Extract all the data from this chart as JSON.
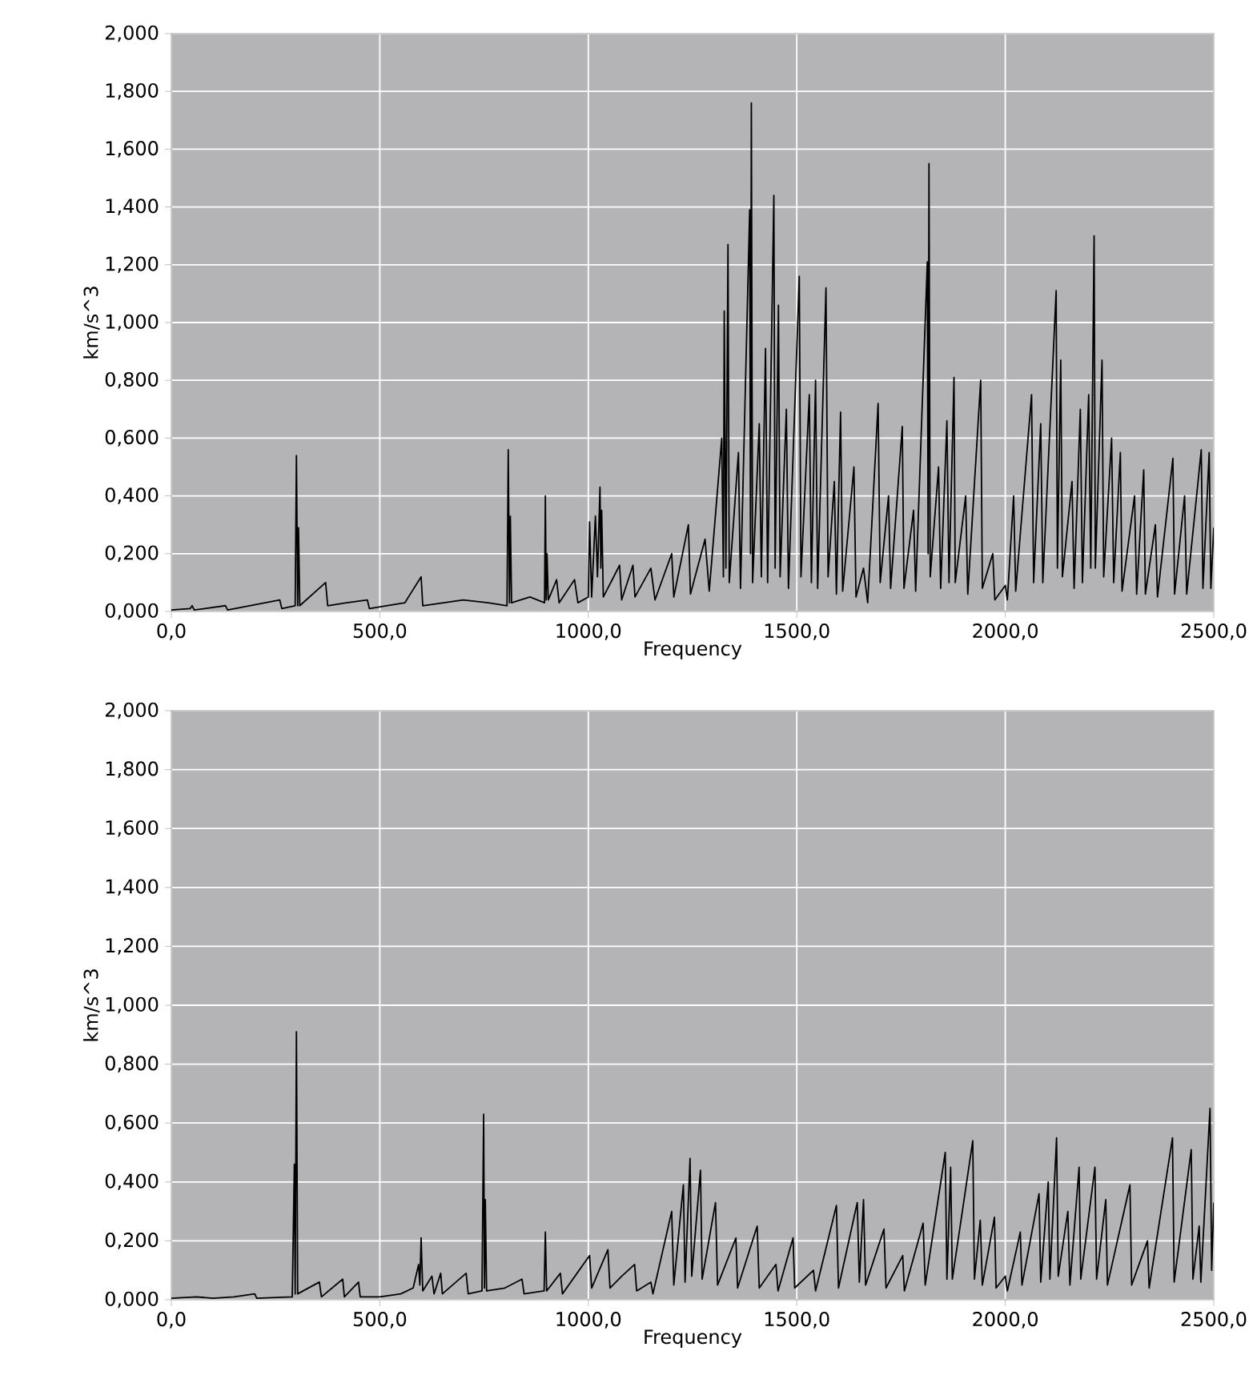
{
  "chart_data": [
    {
      "type": "line",
      "xlabel": "Frequency",
      "ylabel": "km/s^3",
      "grid": true,
      "marker": "none",
      "line_style": "solid",
      "xlim": [
        0,
        2500
      ],
      "ylim": [
        0,
        2
      ],
      "xticks": [
        {
          "value": 0,
          "label": "0,0"
        },
        {
          "value": 500,
          "label": "500,0"
        },
        {
          "value": 1000,
          "label": "1000,0"
        },
        {
          "value": 1500,
          "label": "1500,0"
        },
        {
          "value": 2000,
          "label": "2000,0"
        },
        {
          "value": 2500,
          "label": "2500,0"
        }
      ],
      "yticks": [
        {
          "value": 0,
          "label": "0,000"
        },
        {
          "value": 0.2,
          "label": "0,200"
        },
        {
          "value": 0.4,
          "label": "0,400"
        },
        {
          "value": 0.6,
          "label": "0,600"
        },
        {
          "value": 0.8,
          "label": "0,800"
        },
        {
          "value": 1.0,
          "label": "1,000"
        },
        {
          "value": 1.2,
          "label": "1,200"
        },
        {
          "value": 1.4,
          "label": "1,400"
        },
        {
          "value": 1.6,
          "label": "1,600"
        },
        {
          "value": 1.8,
          "label": "1,800"
        },
        {
          "value": 2.0,
          "label": "2,000"
        }
      ],
      "x": [
        0,
        45,
        50,
        55,
        130,
        135,
        260,
        265,
        297,
        300,
        303,
        305,
        308,
        370,
        375,
        420,
        470,
        475,
        560,
        599,
        603,
        700,
        760,
        805,
        808,
        811,
        813,
        816,
        860,
        895,
        897,
        899,
        901,
        904,
        924,
        930,
        967,
        975,
        1000,
        1003,
        1008,
        1017,
        1022,
        1028,
        1030,
        1032,
        1036,
        1075,
        1080,
        1107,
        1112,
        1150,
        1160,
        1200,
        1205,
        1240,
        1245,
        1280,
        1290,
        1320,
        1324,
        1326,
        1330,
        1335,
        1338,
        1360,
        1365,
        1387,
        1389,
        1391,
        1394,
        1410,
        1415,
        1425,
        1430,
        1445,
        1448,
        1456,
        1460,
        1475,
        1480,
        1506,
        1510,
        1530,
        1535,
        1545,
        1550,
        1570,
        1575,
        1590,
        1595,
        1605,
        1610,
        1637,
        1642,
        1660,
        1670,
        1695,
        1700,
        1720,
        1725,
        1753,
        1757,
        1780,
        1785,
        1813,
        1815,
        1817,
        1820,
        1840,
        1845,
        1860,
        1865,
        1877,
        1880,
        1905,
        1910,
        1941,
        1945,
        1970,
        1975,
        2000,
        2005,
        2020,
        2025,
        2063,
        2068,
        2085,
        2090,
        2122,
        2125,
        2133,
        2137,
        2160,
        2165,
        2180,
        2185,
        2200,
        2205,
        2213,
        2216,
        2232,
        2236,
        2255,
        2260,
        2276,
        2280,
        2310,
        2315,
        2332,
        2336,
        2360,
        2365,
        2402,
        2406,
        2430,
        2435,
        2470,
        2474,
        2489,
        2493,
        2500
      ],
      "series": [
        {
          "color": "#000000",
          "values": [
            0.005,
            0.01,
            0.02,
            0.005,
            0.02,
            0.005,
            0.04,
            0.01,
            0.02,
            0.54,
            0.02,
            0.29,
            0.02,
            0.1,
            0.02,
            0.03,
            0.04,
            0.01,
            0.03,
            0.12,
            0.02,
            0.04,
            0.03,
            0.02,
            0.56,
            0.03,
            0.33,
            0.03,
            0.05,
            0.03,
            0.4,
            0.04,
            0.2,
            0.04,
            0.11,
            0.03,
            0.11,
            0.03,
            0.05,
            0.31,
            0.05,
            0.33,
            0.12,
            0.43,
            0.15,
            0.35,
            0.05,
            0.16,
            0.04,
            0.16,
            0.05,
            0.15,
            0.04,
            0.2,
            0.05,
            0.3,
            0.06,
            0.25,
            0.07,
            0.6,
            0.12,
            1.04,
            0.15,
            1.27,
            0.1,
            0.55,
            0.08,
            1.39,
            0.2,
            1.76,
            0.1,
            0.65,
            0.12,
            0.91,
            0.1,
            1.44,
            0.15,
            1.06,
            0.12,
            0.7,
            0.08,
            1.16,
            0.12,
            0.75,
            0.1,
            0.8,
            0.08,
            1.12,
            0.12,
            0.45,
            0.06,
            0.69,
            0.07,
            0.5,
            0.05,
            0.15,
            0.03,
            0.72,
            0.1,
            0.4,
            0.08,
            0.64,
            0.08,
            0.35,
            0.07,
            1.21,
            0.2,
            1.55,
            0.12,
            0.5,
            0.08,
            0.66,
            0.1,
            0.81,
            0.1,
            0.4,
            0.06,
            0.8,
            0.08,
            0.2,
            0.04,
            0.09,
            0.04,
            0.4,
            0.07,
            0.75,
            0.1,
            0.65,
            0.1,
            1.11,
            0.15,
            0.87,
            0.12,
            0.45,
            0.08,
            0.7,
            0.1,
            0.75,
            0.15,
            1.3,
            0.15,
            0.87,
            0.12,
            0.6,
            0.1,
            0.55,
            0.07,
            0.4,
            0.06,
            0.49,
            0.06,
            0.3,
            0.05,
            0.53,
            0.06,
            0.4,
            0.06,
            0.56,
            0.08,
            0.55,
            0.08,
            0.29
          ]
        }
      ]
    },
    {
      "type": "line",
      "xlabel": "Frequency",
      "ylabel": "km/s^3",
      "grid": true,
      "marker": "none",
      "line_style": "solid",
      "xlim": [
        0,
        2500
      ],
      "ylim": [
        0,
        2
      ],
      "xticks": [
        {
          "value": 0,
          "label": "0,0"
        },
        {
          "value": 500,
          "label": "500,0"
        },
        {
          "value": 1000,
          "label": "1000,0"
        },
        {
          "value": 1500,
          "label": "1500,0"
        },
        {
          "value": 2000,
          "label": "2000,0"
        },
        {
          "value": 2500,
          "label": "2500,0"
        }
      ],
      "yticks": [
        {
          "value": 0,
          "label": "0,000"
        },
        {
          "value": 0.2,
          "label": "0,200"
        },
        {
          "value": 0.4,
          "label": "0,400"
        },
        {
          "value": 0.6,
          "label": "0,600"
        },
        {
          "value": 0.8,
          "label": "0,800"
        },
        {
          "value": 1.0,
          "label": "1,000"
        },
        {
          "value": 1.2,
          "label": "1,200"
        },
        {
          "value": 1.4,
          "label": "1,400"
        },
        {
          "value": 1.6,
          "label": "1,600"
        },
        {
          "value": 1.8,
          "label": "1,800"
        },
        {
          "value": 2.0,
          "label": "2,000"
        }
      ],
      "x": [
        0,
        60,
        100,
        150,
        200,
        205,
        290,
        295,
        297,
        300,
        303,
        355,
        360,
        411,
        415,
        449,
        453,
        500,
        550,
        580,
        593,
        596,
        599,
        603,
        625,
        630,
        646,
        650,
        707,
        712,
        745,
        749,
        751,
        753,
        756,
        800,
        841,
        846,
        894,
        897,
        900,
        933,
        938,
        1003,
        1008,
        1047,
        1052,
        1080,
        1111,
        1116,
        1150,
        1155,
        1200,
        1205,
        1228,
        1232,
        1244,
        1248,
        1269,
        1273,
        1305,
        1310,
        1354,
        1358,
        1405,
        1410,
        1450,
        1455,
        1491,
        1495,
        1540,
        1545,
        1595,
        1600,
        1645,
        1650,
        1660,
        1665,
        1709,
        1714,
        1754,
        1758,
        1803,
        1808,
        1856,
        1860,
        1869,
        1873,
        1922,
        1926,
        1940,
        1945,
        1974,
        1978,
        2000,
        2005,
        2036,
        2040,
        2081,
        2085,
        2103,
        2107,
        2123,
        2127,
        2150,
        2155,
        2177,
        2181,
        2215,
        2219,
        2241,
        2245,
        2299,
        2303,
        2341,
        2345,
        2401,
        2405,
        2446,
        2450,
        2465,
        2469,
        2491,
        2495,
        2500
      ],
      "series": [
        {
          "color": "#000000",
          "values": [
            0.005,
            0.01,
            0.005,
            0.01,
            0.02,
            0.005,
            0.01,
            0.46,
            0.02,
            0.91,
            0.02,
            0.06,
            0.01,
            0.07,
            0.01,
            0.06,
            0.01,
            0.01,
            0.02,
            0.04,
            0.12,
            0.05,
            0.21,
            0.03,
            0.08,
            0.02,
            0.09,
            0.02,
            0.09,
            0.02,
            0.03,
            0.63,
            0.04,
            0.34,
            0.03,
            0.04,
            0.07,
            0.02,
            0.03,
            0.23,
            0.03,
            0.09,
            0.02,
            0.15,
            0.04,
            0.17,
            0.04,
            0.08,
            0.12,
            0.03,
            0.06,
            0.02,
            0.3,
            0.05,
            0.39,
            0.06,
            0.48,
            0.08,
            0.44,
            0.07,
            0.33,
            0.05,
            0.21,
            0.04,
            0.25,
            0.04,
            0.12,
            0.03,
            0.21,
            0.04,
            0.1,
            0.03,
            0.32,
            0.04,
            0.33,
            0.06,
            0.34,
            0.05,
            0.24,
            0.04,
            0.15,
            0.03,
            0.26,
            0.05,
            0.5,
            0.07,
            0.45,
            0.07,
            0.54,
            0.07,
            0.27,
            0.05,
            0.28,
            0.04,
            0.08,
            0.03,
            0.23,
            0.05,
            0.36,
            0.06,
            0.4,
            0.07,
            0.55,
            0.08,
            0.3,
            0.05,
            0.45,
            0.07,
            0.45,
            0.07,
            0.34,
            0.05,
            0.39,
            0.05,
            0.2,
            0.04,
            0.55,
            0.06,
            0.51,
            0.07,
            0.25,
            0.06,
            0.65,
            0.1,
            0.33
          ]
        }
      ]
    }
  ]
}
